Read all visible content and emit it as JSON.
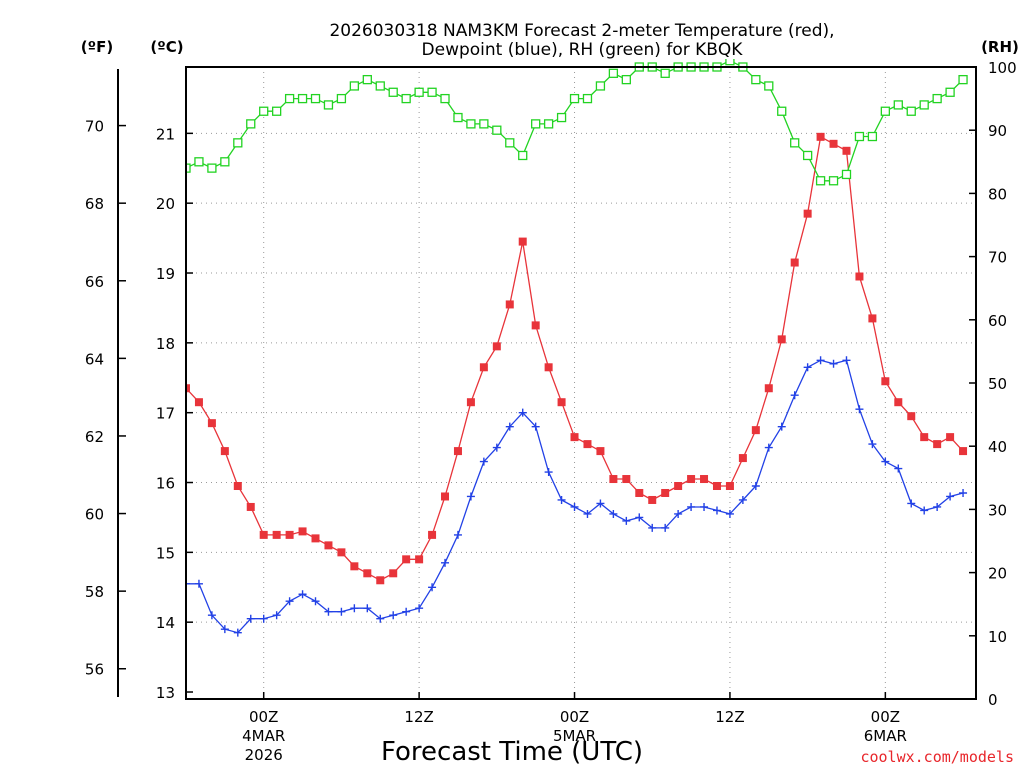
{
  "chart_data": {
    "type": "line",
    "title_line1": "2026030318 NAM3KM Forecast 2-meter Temperature (red),",
    "title_line2": "Dewpoint (blue), RH (green) for KBQK",
    "xlabel": "Forecast Time (UTC)",
    "credit": "coolwx.com/models",
    "units": {
      "fahrenheit": "(ºF)",
      "celsius": "(ºC)",
      "rh": "(RH)"
    },
    "x_range_hours": [
      0,
      61
    ],
    "celsius_range": [
      12.9,
      21.95
    ],
    "rh_range": [
      0,
      100
    ],
    "x_ticks": [
      {
        "hour": 6,
        "label": "00Z",
        "sub1": "4MAR",
        "sub2": "2026"
      },
      {
        "hour": 18,
        "label": "12Z",
        "sub1": "",
        "sub2": ""
      },
      {
        "hour": 30,
        "label": "00Z",
        "sub1": "5MAR",
        "sub2": ""
      },
      {
        "hour": 42,
        "label": "12Z",
        "sub1": "",
        "sub2": ""
      },
      {
        "hour": 54,
        "label": "00Z",
        "sub1": "6MAR",
        "sub2": ""
      }
    ],
    "celsius_ticks": [
      13,
      14,
      15,
      16,
      17,
      18,
      19,
      20,
      21
    ],
    "fahrenheit_ticks": [
      56,
      58,
      60,
      62,
      64,
      66,
      68,
      70
    ],
    "rh_ticks": [
      0,
      10,
      20,
      30,
      40,
      50,
      60,
      70,
      80,
      90,
      100
    ],
    "grid": "dotted",
    "series": [
      {
        "name": "Temperature (°C)",
        "color": "#e8343a",
        "marker": "filled-square",
        "axis": "celsius",
        "values": [
          17.35,
          17.15,
          16.85,
          16.45,
          15.95,
          15.65,
          15.25,
          15.25,
          15.25,
          15.3,
          15.2,
          15.1,
          15.0,
          14.8,
          14.7,
          14.6,
          14.7,
          14.9,
          14.9,
          15.25,
          15.8,
          16.45,
          17.15,
          17.65,
          17.95,
          18.55,
          19.45,
          18.25,
          17.65,
          17.15,
          16.65,
          16.55,
          16.45,
          16.05,
          16.05,
          15.85,
          15.75,
          15.85,
          15.95,
          16.05,
          16.05,
          15.95,
          15.95,
          16.35,
          16.75,
          17.35,
          18.05,
          19.15,
          19.85,
          20.95,
          20.85,
          20.75,
          18.95,
          18.35,
          17.45,
          17.15,
          16.95,
          16.65,
          16.55,
          16.65,
          16.45
        ]
      },
      {
        "name": "Dewpoint (°C)",
        "color": "#2241e6",
        "marker": "plus",
        "axis": "celsius",
        "values": [
          14.55,
          14.55,
          14.1,
          13.9,
          13.85,
          14.05,
          14.05,
          14.1,
          14.3,
          14.4,
          14.3,
          14.15,
          14.15,
          14.2,
          14.2,
          14.05,
          14.1,
          14.15,
          14.2,
          14.5,
          14.85,
          15.25,
          15.8,
          16.3,
          16.5,
          16.8,
          17.0,
          16.8,
          16.15,
          15.75,
          15.65,
          15.55,
          15.7,
          15.55,
          15.45,
          15.5,
          15.35,
          15.35,
          15.55,
          15.65,
          15.65,
          15.6,
          15.55,
          15.75,
          15.95,
          16.5,
          16.8,
          17.25,
          17.65,
          17.75,
          17.7,
          17.75,
          17.05,
          16.55,
          16.3,
          16.2,
          15.7,
          15.6,
          15.65,
          15.8,
          15.85
        ]
      },
      {
        "name": "Relative Humidity (%)",
        "color": "#22d322",
        "marker": "hollow-square",
        "axis": "rh",
        "values": [
          84,
          85,
          84,
          85,
          88,
          91,
          93,
          93,
          95,
          95,
          95,
          94,
          95,
          97,
          98,
          97,
          96,
          95,
          96,
          96,
          95,
          92,
          91,
          91,
          90,
          88,
          86,
          91,
          91,
          92,
          95,
          95,
          97,
          99,
          98,
          100,
          100,
          99,
          100,
          100,
          100,
          100,
          101,
          100,
          98,
          97,
          93,
          88,
          86,
          82,
          82,
          83,
          89,
          89,
          93,
          94,
          93,
          94,
          95,
          96,
          98
        ]
      }
    ]
  }
}
